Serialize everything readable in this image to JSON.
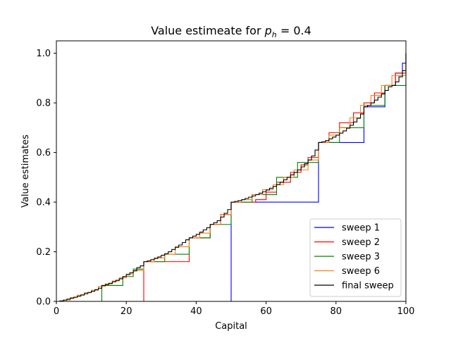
{
  "chart_data": {
    "type": "line",
    "title": "Value estimeate for ",
    "title_math": "p",
    "title_sub": "h",
    "title_rest": " =  0.4",
    "xlabel": "Capital",
    "ylabel": "Value estimates",
    "xlim": [
      0,
      100
    ],
    "ylim": [
      0,
      1.05
    ],
    "xticks": [
      0,
      20,
      40,
      60,
      80,
      100
    ],
    "yticks": [
      0.0,
      0.2,
      0.4,
      0.6,
      0.8,
      1.0
    ],
    "xtick_labels": [
      "0",
      "20",
      "40",
      "60",
      "80",
      "100"
    ],
    "ytick_labels": [
      "0.0",
      "0.2",
      "0.4",
      "0.6",
      "0.8",
      "1.0"
    ],
    "grid": false,
    "legend_position": "bottom-right",
    "series": [
      {
        "name": "sweep 1",
        "color": "#0000ff",
        "step": "post",
        "x": [
          0,
          50,
          75,
          88,
          94,
          97,
          99,
          100
        ],
        "y": [
          0.0,
          0.4,
          0.64,
          0.784,
          0.87,
          0.92,
          0.96,
          1.0
        ]
      },
      {
        "name": "sweep 2",
        "color": "#ff0000",
        "step": "post",
        "x": [
          0,
          25,
          38,
          44,
          47,
          50,
          57,
          60,
          63,
          67,
          70,
          72,
          75,
          78,
          81,
          85,
          88,
          91,
          94,
          97,
          100
        ],
        "y": [
          0.0,
          0.16,
          0.256,
          0.31,
          0.35,
          0.4,
          0.41,
          0.44,
          0.48,
          0.52,
          0.55,
          0.58,
          0.64,
          0.68,
          0.72,
          0.76,
          0.8,
          0.84,
          0.87,
          0.92,
          1.0
        ]
      },
      {
        "name": "sweep 3",
        "color": "#008000",
        "step": "post",
        "x": [
          0,
          13,
          19,
          22,
          25,
          31,
          38,
          44,
          50,
          56,
          63,
          69,
          75,
          81,
          88,
          94,
          100
        ],
        "y": [
          0.0,
          0.064,
          0.1,
          0.13,
          0.16,
          0.19,
          0.256,
          0.31,
          0.4,
          0.43,
          0.5,
          0.56,
          0.64,
          0.7,
          0.79,
          0.87,
          1.0
        ]
      },
      {
        "name": "sweep 6",
        "color": "#ff7f0e",
        "step": "post",
        "x": [
          0,
          2,
          4,
          6,
          8,
          10,
          12,
          14,
          16,
          18,
          20,
          22,
          25,
          28,
          31,
          34,
          38,
          41,
          44,
          47,
          50,
          53,
          56,
          59,
          62,
          65,
          68,
          72,
          75,
          78,
          81,
          84,
          87,
          90,
          93,
          96,
          100
        ],
        "y": [
          0.0,
          0.006,
          0.015,
          0.025,
          0.035,
          0.045,
          0.06,
          0.07,
          0.082,
          0.095,
          0.11,
          0.125,
          0.16,
          0.175,
          0.19,
          0.22,
          0.256,
          0.275,
          0.31,
          0.35,
          0.4,
          0.41,
          0.43,
          0.45,
          0.47,
          0.5,
          0.53,
          0.57,
          0.64,
          0.67,
          0.7,
          0.74,
          0.79,
          0.83,
          0.87,
          0.91,
          1.0
        ]
      },
      {
        "name": "final sweep",
        "color": "#000000",
        "step": "post",
        "x": [
          0,
          1,
          2,
          3,
          4,
          5,
          6,
          7,
          8,
          9,
          10,
          11,
          12,
          13,
          14,
          15,
          16,
          17,
          18,
          19,
          20,
          21,
          22,
          23,
          24,
          25,
          26,
          27,
          28,
          29,
          30,
          31,
          32,
          33,
          34,
          35,
          36,
          37,
          38,
          39,
          40,
          41,
          42,
          43,
          44,
          45,
          46,
          47,
          48,
          49,
          50,
          51,
          52,
          53,
          54,
          55,
          56,
          57,
          58,
          59,
          60,
          61,
          62,
          63,
          64,
          65,
          66,
          67,
          68,
          69,
          70,
          71,
          72,
          73,
          74,
          75,
          76,
          77,
          78,
          79,
          80,
          81,
          82,
          83,
          84,
          85,
          86,
          87,
          88,
          89,
          90,
          91,
          92,
          93,
          94,
          95,
          96,
          97,
          98,
          99,
          100
        ],
        "y": [
          0.0,
          0.002,
          0.005,
          0.009,
          0.013,
          0.017,
          0.021,
          0.026,
          0.031,
          0.036,
          0.041,
          0.047,
          0.053,
          0.064,
          0.068,
          0.073,
          0.079,
          0.085,
          0.091,
          0.1,
          0.108,
          0.115,
          0.123,
          0.136,
          0.143,
          0.16,
          0.163,
          0.168,
          0.173,
          0.179,
          0.186,
          0.192,
          0.2,
          0.209,
          0.218,
          0.227,
          0.237,
          0.248,
          0.256,
          0.263,
          0.27,
          0.279,
          0.288,
          0.297,
          0.31,
          0.317,
          0.325,
          0.34,
          0.355,
          0.37,
          0.4,
          0.403,
          0.406,
          0.41,
          0.415,
          0.42,
          0.425,
          0.43,
          0.436,
          0.442,
          0.449,
          0.456,
          0.463,
          0.471,
          0.48,
          0.49,
          0.5,
          0.51,
          0.52,
          0.53,
          0.542,
          0.555,
          0.57,
          0.586,
          0.61,
          0.64,
          0.643,
          0.648,
          0.655,
          0.662,
          0.67,
          0.678,
          0.687,
          0.698,
          0.71,
          0.723,
          0.738,
          0.755,
          0.784,
          0.79,
          0.8,
          0.811,
          0.823,
          0.836,
          0.85,
          0.865,
          0.87,
          0.885,
          0.905,
          0.93,
          1.0
        ]
      }
    ]
  }
}
